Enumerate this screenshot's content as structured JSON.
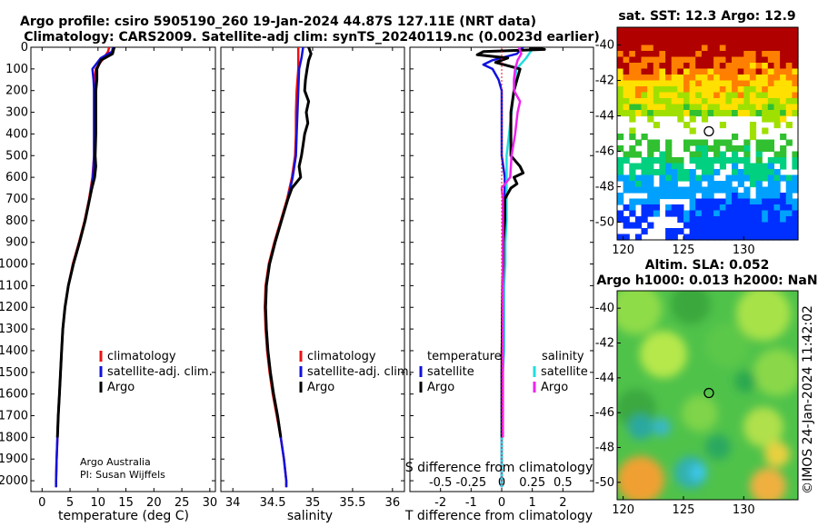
{
  "titles": {
    "line1": "Argo profile: csiro 5905190_260 19-Jan-2024 44.87S 127.11E (NRT data)",
    "line2": "Climatology: CARS2009. Satellite-adj clim: synTS_20240119.nc (0.0023d earlier)",
    "sst": "sat. SST: 12.3 Argo: 12.9",
    "sla1": "Altim. SLA: 0.052",
    "sla2": "Argo h1000: 0.013 h2000: NaN"
  },
  "footer": {
    "line1": "Argo Australia",
    "line2": "PI: Susan Wijffels"
  },
  "stamp": "©IMOS 24-Jan-2024 11:42:02",
  "legend": {
    "climatology": "climatology",
    "satellite": "satellite-adj. clim.",
    "argo": "Argo",
    "temperature": "temperature",
    "salinity": "salinity",
    "sat_short": "satellite",
    "argo_short": "Argo"
  },
  "colors": {
    "climatology": "#ee1111",
    "satellite": "#1111dd",
    "argo": "#000000",
    "tsat": "#1111dd",
    "ssat": "#22dddd",
    "sargo": "#ee22ee"
  },
  "chart_data": [
    {
      "type": "line",
      "name": "temperature profile",
      "xlabel": "temperature (deg C)",
      "ylim": [
        2050,
        0
      ],
      "xlim": [
        -2,
        31
      ],
      "xticks": [
        0,
        5,
        10,
        15,
        20,
        25,
        30
      ],
      "yticks": [
        0,
        100,
        200,
        300,
        400,
        500,
        600,
        700,
        800,
        900,
        1000,
        1100,
        1200,
        1300,
        1400,
        1500,
        1600,
        1700,
        1800,
        1900,
        2000
      ],
      "series": [
        {
          "name": "climatology",
          "depth": [
            0,
            20,
            50,
            100,
            150,
            200,
            300,
            400,
            500,
            600,
            700,
            800,
            900,
            1000,
            1100,
            1200,
            1300,
            1400,
            1500,
            1600,
            1700,
            1800,
            1900,
            2000,
            2030
          ],
          "values": [
            12.0,
            11.8,
            11.0,
            9.6,
            9.4,
            9.3,
            9.3,
            9.3,
            9.3,
            9.0,
            8.4,
            7.6,
            6.6,
            5.5,
            4.7,
            4.1,
            3.7,
            3.5,
            3.3,
            3.1,
            2.9,
            2.75,
            2.6,
            2.5,
            2.5
          ]
        },
        {
          "name": "satellite-adj. clim.",
          "depth": [
            0,
            20,
            50,
            100,
            150,
            200,
            300,
            400,
            500,
            600,
            700,
            800,
            900,
            1000,
            1100,
            1200,
            1300,
            1400,
            1500,
            1600,
            1700,
            1800,
            1900,
            2000,
            2030
          ],
          "values": [
            12.7,
            12.5,
            10.5,
            9.0,
            9.2,
            9.3,
            9.3,
            9.3,
            9.3,
            9.1,
            8.5,
            7.7,
            6.7,
            5.6,
            4.7,
            4.1,
            3.7,
            3.5,
            3.3,
            3.1,
            2.9,
            2.75,
            2.6,
            2.5,
            2.5
          ]
        },
        {
          "name": "Argo",
          "depth": [
            0,
            10,
            30,
            60,
            100,
            150,
            200,
            250,
            300,
            400,
            500,
            550,
            600,
            650,
            700,
            800,
            900,
            1000,
            1100,
            1200,
            1300,
            1400,
            1500,
            1600,
            1700,
            1800
          ],
          "values": [
            12.9,
            12.8,
            12.6,
            10.5,
            9.8,
            9.8,
            9.6,
            9.6,
            9.6,
            9.6,
            9.5,
            9.6,
            9.4,
            8.9,
            8.5,
            7.7,
            6.7,
            5.6,
            4.7,
            4.1,
            3.7,
            3.5,
            3.3,
            3.1,
            2.9,
            2.75
          ]
        }
      ]
    },
    {
      "type": "line",
      "name": "salinity profile",
      "xlabel": "salinity",
      "ylim": [
        2050,
        0
      ],
      "xlim": [
        33.85,
        36.15
      ],
      "xticks": [
        34,
        34.5,
        35,
        35.5,
        36
      ],
      "series": [
        {
          "name": "climatology",
          "depth": [
            0,
            50,
            100,
            200,
            300,
            400,
            500,
            600,
            700,
            800,
            900,
            1000,
            1100,
            1200,
            1300,
            1400,
            1500,
            1600,
            1700,
            1800,
            1900,
            2000,
            2030
          ],
          "values": [
            34.82,
            34.82,
            34.82,
            34.8,
            34.79,
            34.79,
            34.78,
            34.74,
            34.68,
            34.6,
            34.52,
            34.45,
            34.41,
            34.4,
            34.41,
            34.43,
            34.46,
            34.5,
            34.55,
            34.6,
            34.64,
            34.67,
            34.67
          ]
        },
        {
          "name": "satellite-adj. clim.",
          "depth": [
            0,
            50,
            100,
            200,
            300,
            400,
            500,
            600,
            700,
            800,
            900,
            1000,
            1100,
            1200,
            1300,
            1400,
            1500,
            1600,
            1700,
            1800,
            1900,
            2000,
            2030
          ],
          "values": [
            34.88,
            34.86,
            34.83,
            34.82,
            34.81,
            34.8,
            34.79,
            34.75,
            34.69,
            34.61,
            34.53,
            34.46,
            34.42,
            34.41,
            34.42,
            34.44,
            34.47,
            34.51,
            34.56,
            34.6,
            34.64,
            34.67,
            34.67
          ]
        },
        {
          "name": "Argo",
          "depth": [
            0,
            30,
            60,
            100,
            150,
            200,
            250,
            300,
            350,
            400,
            450,
            500,
            550,
            600,
            650,
            700,
            800,
            900,
            1000,
            1100,
            1200,
            1300,
            1400,
            1500,
            1600,
            1700,
            1800
          ],
          "values": [
            34.95,
            34.98,
            34.95,
            34.93,
            34.91,
            34.9,
            34.95,
            34.92,
            34.94,
            34.9,
            34.88,
            34.86,
            34.83,
            34.85,
            34.74,
            34.69,
            34.61,
            34.53,
            34.46,
            34.42,
            34.41,
            34.42,
            34.44,
            34.47,
            34.51,
            34.56,
            34.6
          ]
        }
      ]
    },
    {
      "type": "line",
      "name": "difference from climatology",
      "xlabel": "T difference from climatology",
      "x2label": "S difference from climatology",
      "ylim": [
        2050,
        0
      ],
      "xlim": [
        -3.0,
        3.0
      ],
      "xticks": [
        -2,
        -1,
        0,
        1,
        2
      ],
      "s_ticks": [
        -0.5,
        -0.25,
        0,
        0.25,
        0.5
      ],
      "s_tick_labels": [
        "-0.5",
        "-0.25",
        "0",
        "0.25",
        "0.5"
      ],
      "series": [
        {
          "name": "temperature satellite",
          "depth": [
            0,
            30,
            60,
            80,
            100,
            150,
            200,
            300,
            400,
            500,
            600,
            700,
            800,
            900,
            1000,
            1100,
            1200,
            1300,
            1400,
            1500,
            1600,
            1700,
            1800,
            1900,
            2000,
            2030
          ],
          "values": [
            0.7,
            0.5,
            -0.3,
            -0.6,
            -0.3,
            -0.1,
            0,
            0,
            0,
            0,
            0.1,
            0.1,
            0.05,
            0.05,
            0.05,
            0.03,
            0.02,
            0.01,
            0.01,
            0,
            0,
            0,
            0,
            0,
            0,
            0
          ]
        },
        {
          "name": "salinity satellite",
          "depth": [
            0,
            50,
            100,
            200,
            300,
            400,
            500,
            600,
            700,
            800,
            900,
            1000,
            1100,
            1200,
            1300,
            1400,
            1500,
            1600,
            1700,
            1800,
            1900,
            2000,
            2030
          ],
          "values": [
            0.26,
            0.2,
            0.12,
            0.1,
            0.08,
            0.06,
            0.04,
            0.04,
            0.04,
            0.04,
            0.03,
            0.03,
            0.02,
            0.02,
            0.02,
            0.02,
            0.01,
            0.01,
            0.0,
            0.0,
            0.0,
            0.0,
            0.0
          ]
        },
        {
          "name": "temperature Argo",
          "depth": [
            0,
            10,
            20,
            35,
            50,
            70,
            100,
            150,
            200,
            300,
            400,
            500,
            550,
            580,
            600,
            630,
            650,
            700,
            800,
            900,
            1000,
            1100,
            1200,
            1300,
            1400,
            1500,
            1600,
            1700,
            1800
          ],
          "values": [
            0.9,
            1.4,
            -0.6,
            -0.8,
            0.2,
            -0.2,
            0.6,
            0.5,
            0.4,
            0.3,
            0.3,
            0.3,
            0.6,
            0.7,
            0.4,
            0.5,
            0.3,
            0.1,
            0.1,
            0.05,
            0.05,
            0.03,
            0.02,
            0.02,
            0.01,
            0.01,
            0.01,
            0.01,
            0.01
          ]
        },
        {
          "name": "salinity Argo",
          "depth": [
            0,
            30,
            60,
            100,
            150,
            200,
            250,
            300,
            400,
            500,
            600,
            650,
            700,
            800,
            900,
            1000,
            1100,
            1200,
            1300,
            1400,
            1500,
            1600,
            1700,
            1800
          ],
          "values": [
            0.14,
            0.16,
            0.13,
            0.11,
            0.1,
            0.1,
            0.15,
            0.13,
            0.11,
            0.08,
            0.07,
            0.0,
            0.01,
            0.01,
            0.01,
            0.01,
            0.01,
            0.01,
            0.01,
            0.01,
            0.01,
            0.01,
            0.01,
            0.01
          ]
        },
        {
          "name": "climatology",
          "depth": [
            0,
            2030
          ],
          "values": [
            0,
            0
          ]
        }
      ]
    },
    {
      "type": "heatmap",
      "name": "satellite SST map",
      "xlim": [
        119.5,
        134.5
      ],
      "ylim": [
        -51,
        -39
      ],
      "xticks": [
        120,
        125,
        130
      ],
      "yticks": [
        -40,
        -42,
        -44,
        -46,
        -48,
        -50
      ],
      "marker": {
        "lon": 127.11,
        "lat": -44.87
      }
    },
    {
      "type": "heatmap",
      "name": "altimetry SLA map",
      "xlim": [
        119.5,
        134.5
      ],
      "ylim": [
        -51,
        -39
      ],
      "xticks": [
        120,
        125,
        130
      ],
      "yticks": [
        -40,
        -42,
        -44,
        -46,
        -48,
        -50
      ],
      "marker": {
        "lon": 127.11,
        "lat": -44.87
      }
    }
  ]
}
